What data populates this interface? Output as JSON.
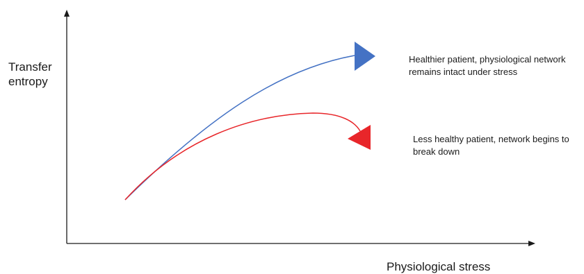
{
  "axes": {
    "ylabel_line1": "Transfer",
    "ylabel_line2": "entropy",
    "xlabel": "Physiological stress"
  },
  "annotations": {
    "healthy_line1": "Healthier patient, physiological network",
    "healthy_line2": "remains intact under stress",
    "unhealthy_line1": "Less healthy patient, network begins to",
    "unhealthy_line2": "break down"
  },
  "colors": {
    "healthy": "#4472c4",
    "unhealthy": "#e8262a",
    "axis": "#1a1a1a"
  }
}
